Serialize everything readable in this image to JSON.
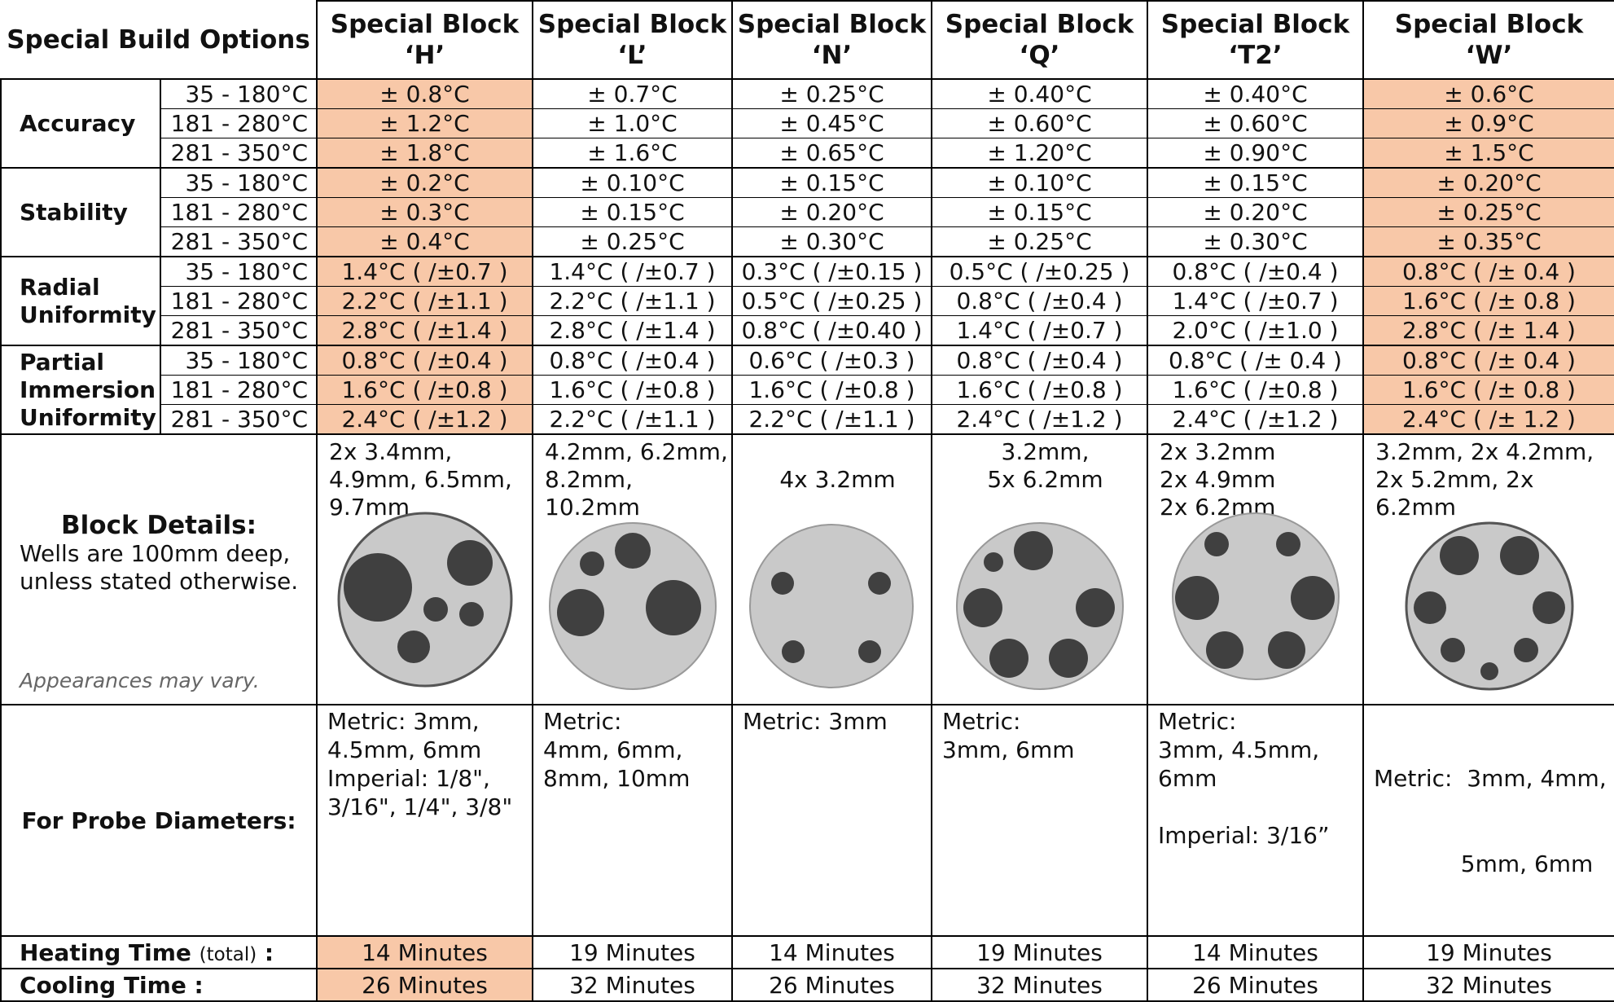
{
  "title": "Special Build Options",
  "columns": [
    {
      "line1": "Special Block",
      "line2": "‘H’"
    },
    {
      "line1": "Special Block",
      "line2": "‘L’"
    },
    {
      "line1": "Special Block",
      "line2": "‘N’"
    },
    {
      "line1": "Special Block",
      "line2": "‘Q’"
    },
    {
      "line1": "Special Block",
      "line2": "‘T2’"
    },
    {
      "line1": "Special Block",
      "line2": "‘W’"
    }
  ],
  "highlight_color": "#f8c8a8",
  "ranges": [
    "35 - 180°C",
    "181 - 280°C",
    "281 - 350°C"
  ],
  "groups": {
    "accuracy": {
      "label": "Accuracy",
      "rows": [
        [
          "± 0.8°C",
          "± 0.7°C",
          "± 0.25°C",
          "± 0.40°C",
          "± 0.40°C",
          "± 0.6°C"
        ],
        [
          "± 1.2°C",
          "± 1.0°C",
          "± 0.45°C",
          "± 0.60°C",
          "± 0.60°C",
          "± 0.9°C"
        ],
        [
          "± 1.8°C",
          "± 1.6°C",
          "± 0.65°C",
          "± 1.20°C",
          "± 0.90°C",
          "± 1.5°C"
        ]
      ]
    },
    "stability": {
      "label": "Stability",
      "rows": [
        [
          "± 0.2°C",
          "± 0.10°C",
          "± 0.15°C",
          "± 0.10°C",
          "± 0.15°C",
          "± 0.20°C"
        ],
        [
          "± 0.3°C",
          "± 0.15°C",
          "± 0.20°C",
          "± 0.15°C",
          "± 0.20°C",
          "± 0.25°C"
        ],
        [
          "± 0.4°C",
          "± 0.25°C",
          "± 0.30°C",
          "± 0.25°C",
          "± 0.30°C",
          "± 0.35°C"
        ]
      ]
    },
    "radial": {
      "label1": "Radial",
      "label2": "Uniformity",
      "rows": [
        [
          "1.4°C  ( /±0.7 )",
          "1.4°C  ( /±0.7 )",
          "0.3°C ( /±0.15 )",
          "0.5°C  ( /±0.25 )",
          "0.8°C  ( /±0.4 )",
          "0.8°C  ( /± 0.4 )"
        ],
        [
          "2.2°C  ( /±1.1 )",
          "2.2°C  ( /±1.1 )",
          "0.5°C ( /±0.25 )",
          "0.8°C  ( /±0.4 )",
          "1.4°C  ( /±0.7 )",
          "1.6°C  ( /± 0.8 )"
        ],
        [
          "2.8°C  ( /±1.4 )",
          "2.8°C  ( /±1.4 )",
          "0.8°C ( /±0.40 )",
          "1.4°C  ( /±0.7 )",
          "2.0°C  ( /±1.0 )",
          "2.8°C  ( /± 1.4 )"
        ]
      ]
    },
    "partial": {
      "label1": "Partial",
      "label2": "Immersion",
      "label3": "Uniformity",
      "rows": [
        [
          "0.8°C  ( /±0.4 )",
          "0.8°C  ( /±0.4 )",
          "0.6°C  ( /±0.3 )",
          "0.8°C  ( /±0.4 )",
          "0.8°C  ( /± 0.4 )",
          "0.8°C  ( /± 0.4 )"
        ],
        [
          "1.6°C  ( /±0.8 )",
          "1.6°C  ( /±0.8 )",
          "1.6°C  ( /±0.8 )",
          "1.6°C  ( /±0.8 )",
          "1.6°C  ( /±0.8 )",
          "1.6°C  ( /± 0.8 )"
        ],
        [
          "2.4°C  ( /±1.2 )",
          "2.2°C  ( /±1.1 )",
          "2.2°C  ( /±1.1 )",
          "2.4°C  ( /±1.2 )",
          "2.4°C  ( /±1.2 )",
          "2.4°C  ( /± 1.2 )"
        ]
      ]
    }
  },
  "block_details": {
    "title": "Block Details:",
    "sub1": "Wells are 100mm deep,",
    "sub2": "unless stated otherwise.",
    "note": "Appearances may vary.",
    "wells": [
      [
        "2x 3.4mm,",
        "4.9mm, 6.5mm,",
        "9.7mm"
      ],
      [
        "4.2mm, 6.2mm,",
        "8.2mm, 10.2mm"
      ],
      [
        "",
        "4x  3.2mm"
      ],
      [
        "3.2mm,",
        "5x 6.2mm"
      ],
      [
        "2x 3.2mm",
        "2x 4.9mm",
        "2x 6.2mm"
      ],
      [
        "3.2mm, 2x 4.2mm,",
        "2x 5.2mm, 2x 6.2mm"
      ]
    ]
  },
  "probe": {
    "label": "For Probe Diameters:",
    "values": [
      [
        "Metric: 3mm,",
        "4.5mm, 6mm",
        "Imperial: 1/8\",",
        "3/16\", 1/4\", 3/8\""
      ],
      [
        "Metric:",
        "4mm, 6mm,",
        "8mm, 10mm"
      ],
      [
        "Metric:  3mm"
      ],
      [
        "Metric:",
        "3mm, 6mm"
      ],
      [
        "Metric:",
        "3mm, 4.5mm,",
        "6mm",
        "",
        "Imperial: 3/16”"
      ],
      [
        "Metric:  3mm, 4mm,",
        "            5mm, 6mm"
      ]
    ]
  },
  "heating": {
    "label": "Heating Time",
    "suffix": "(total)",
    "colon": " :",
    "values": [
      "14 Minutes",
      "19 Minutes",
      "14 Minutes",
      "19 Minutes",
      "14 Minutes",
      "19 Minutes"
    ]
  },
  "cooling": {
    "label": "Cooling Time :",
    "values": [
      "26 Minutes",
      "32 Minutes",
      "26 Minutes",
      "32 Minutes",
      "26 Minutes",
      "32 Minutes"
    ]
  }
}
